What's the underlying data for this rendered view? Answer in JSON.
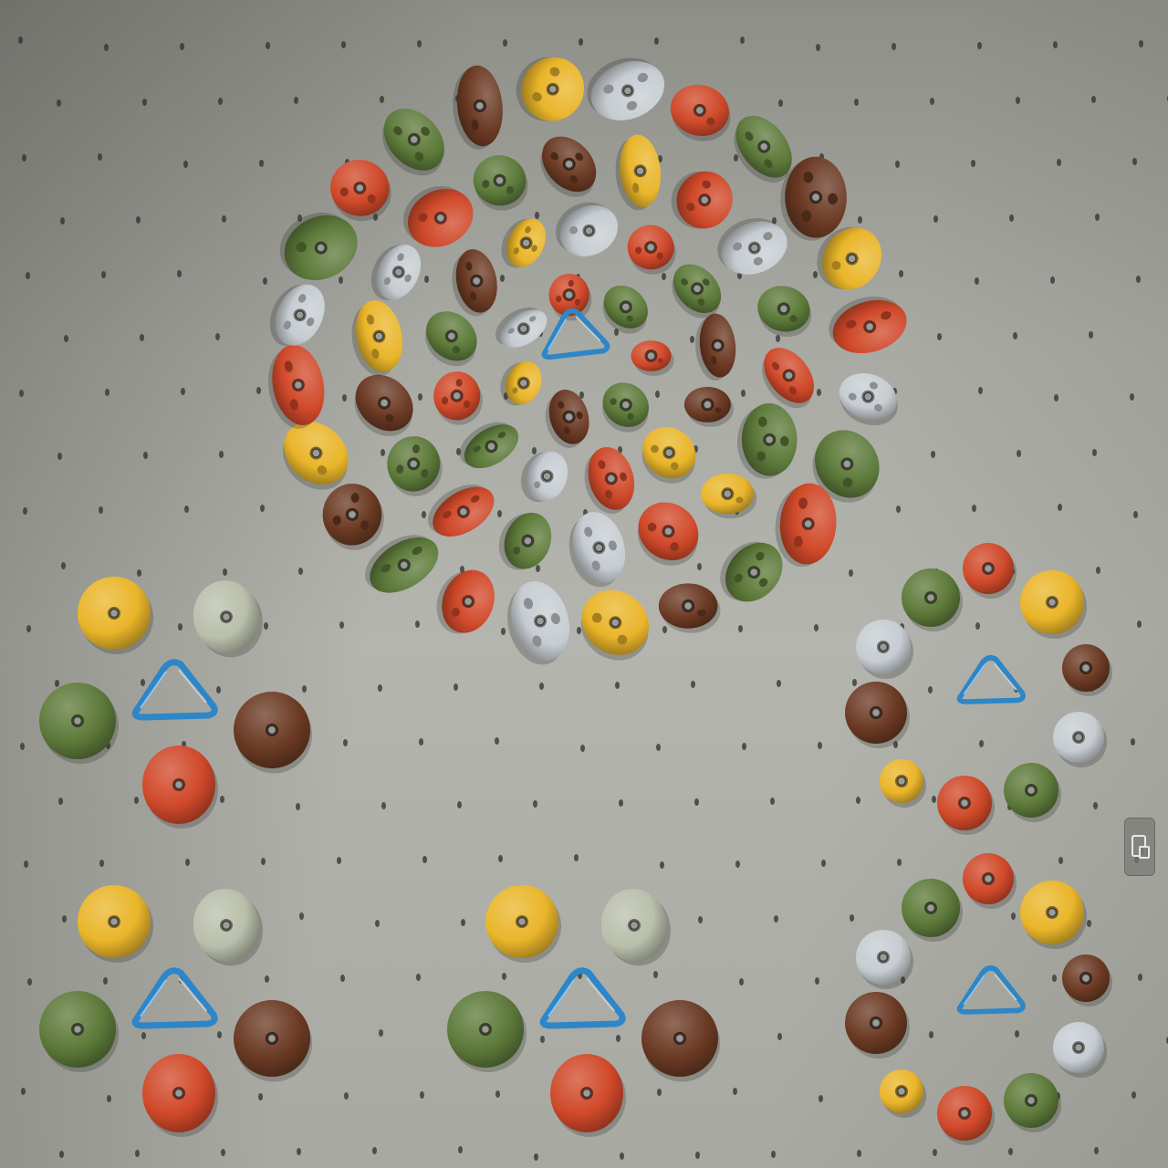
{
  "scene": {
    "subject": "climbing-holds",
    "palette": {
      "wall": "#aaaba5",
      "yellow": "#e9b52a",
      "red": "#d0492a",
      "green": "#5d7a3a",
      "brown": "#6b3a24",
      "grey": "#c6ccd1",
      "sage": "#b9bfaa",
      "carabiner": "#2d86c8",
      "bolt": "#6e6e6e"
    }
  }
}
